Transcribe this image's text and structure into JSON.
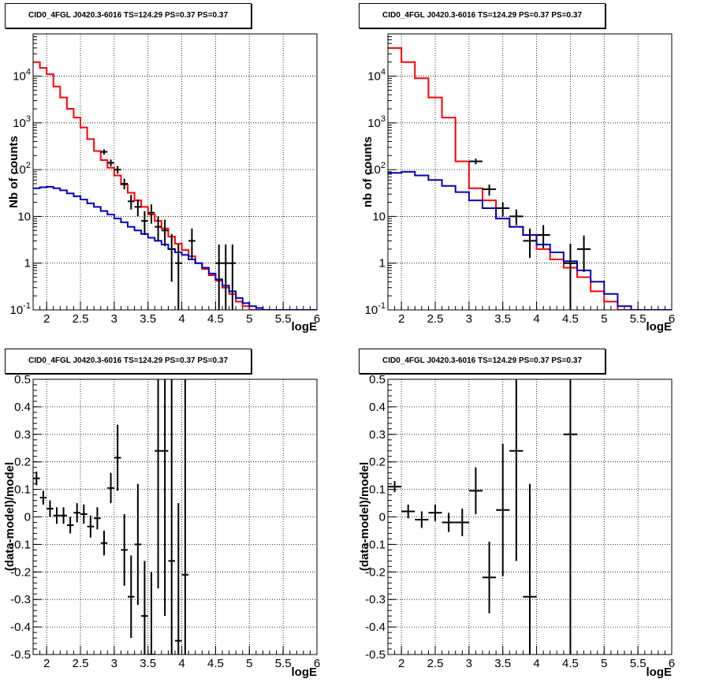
{
  "colors": {
    "model_total": "#ff0000",
    "model_background": "#0000cc",
    "data": "#000000"
  },
  "chart_data": [
    {
      "id": "top-left",
      "type": "line",
      "title": "CID0_4FGL J0420.3-6016 TS=124.29 PS=0.37 PS=0.37",
      "xlabel": "logE",
      "ylabel": "Nb of counts",
      "xlim": [
        1.8,
        6.0
      ],
      "ylim": [
        0.1,
        80000
      ],
      "yscale": "log",
      "grid": true,
      "x_ticks": [
        2,
        2.5,
        3,
        3.5,
        4,
        4.5,
        5,
        5.5,
        6
      ],
      "x_tick_labels": [
        "2",
        "2.5",
        "3",
        "3.5",
        "4",
        "4.5",
        "5",
        "5.5",
        "6"
      ],
      "y_ticks": [
        0.1,
        1,
        10,
        100,
        1000,
        10000
      ],
      "y_tick_labels": [
        "10^-1",
        "1",
        "10",
        "10^2",
        "10^3",
        "10^4"
      ],
      "series": [
        {
          "name": "",
          "role": "model_total",
          "style": "step",
          "bin_width": 0.1,
          "x": [
            1.8,
            1.9,
            2.0,
            2.1,
            2.2,
            2.3,
            2.4,
            2.5,
            2.6,
            2.7,
            2.8,
            2.9,
            3.0,
            3.1,
            3.2,
            3.3,
            3.4,
            3.5,
            3.6,
            3.7,
            3.8,
            3.9,
            4.0,
            4.1,
            4.2,
            4.3,
            4.4,
            4.5,
            4.6,
            4.7,
            4.8,
            4.9,
            5.0,
            5.1,
            5.2,
            5.3,
            5.4,
            5.5,
            5.6,
            5.7,
            5.8,
            5.9
          ],
          "y": [
            20000,
            15000,
            11000,
            6000,
            3500,
            2000,
            1300,
            800,
            450,
            250,
            160,
            110,
            75,
            48,
            32,
            22,
            16,
            11,
            8,
            5.5,
            3.7,
            2.6,
            1.9,
            1.4,
            1.0,
            0.75,
            0.55,
            0.42,
            0.3,
            0.22,
            0.15,
            0.12,
            0.1,
            0.1,
            0.1,
            0.1,
            0.1,
            0.1,
            0.1,
            0.1,
            0.1,
            0.1
          ]
        },
        {
          "name": "",
          "role": "model_background",
          "style": "step",
          "bin_width": 0.1,
          "x": [
            1.8,
            1.9,
            2.0,
            2.1,
            2.2,
            2.3,
            2.4,
            2.5,
            2.6,
            2.7,
            2.8,
            2.9,
            3.0,
            3.1,
            3.2,
            3.3,
            3.4,
            3.5,
            3.6,
            3.7,
            3.8,
            3.9,
            4.0,
            4.1,
            4.2,
            4.3,
            4.4,
            4.5,
            4.6,
            4.7,
            4.8,
            4.9,
            5.0,
            5.1,
            5.2,
            5.3,
            5.4,
            5.5,
            5.6,
            5.7,
            5.8,
            5.9
          ],
          "y": [
            40,
            42,
            43,
            40,
            36,
            31,
            27,
            23,
            19,
            16,
            13,
            11,
            9,
            7.5,
            6,
            5,
            4.2,
            3.5,
            3.0,
            2.5,
            2.0,
            1.7,
            1.5,
            1.2,
            1.0,
            0.8,
            0.6,
            0.45,
            0.33,
            0.25,
            0.18,
            0.14,
            0.12,
            0.11,
            0.1,
            0.1,
            0.1,
            0.1,
            0.1,
            0.1,
            0.1,
            0.1
          ]
        },
        {
          "name": "",
          "role": "data",
          "style": "errorbar",
          "xerr": 0.05,
          "x": [
            2.85,
            2.95,
            3.05,
            3.15,
            3.25,
            3.35,
            3.45,
            3.55,
            3.65,
            3.75,
            3.85,
            3.95,
            4.15,
            4.55,
            4.65,
            4.75
          ],
          "y": [
            240,
            140,
            100,
            50,
            21,
            16,
            8,
            12,
            6,
            5,
            2,
            1,
            3,
            1,
            1,
            1
          ],
          "ylo": [
            210,
            118,
            82,
            38,
            14,
            10,
            4,
            7,
            3,
            2.3,
            0.4,
            0.1,
            1.2,
            0.1,
            0.1,
            0.1
          ],
          "yhi": [
            272,
            165,
            120,
            64,
            29,
            23,
            13,
            18,
            10,
            8.5,
            4.2,
            2.5,
            5.5,
            2.5,
            2.5,
            2.5
          ]
        }
      ]
    },
    {
      "id": "top-right",
      "type": "line",
      "title": "CID0_4FGL J0420.3-6016 TS=124.29 PS=0.37 PS=0.37",
      "xlabel": "logE",
      "ylabel": "nb of counts",
      "xlim": [
        1.8,
        6.0
      ],
      "ylim": [
        0.1,
        80000
      ],
      "yscale": "log",
      "grid": true,
      "x_ticks": [
        2,
        2.5,
        3,
        3.5,
        4,
        4.5,
        5,
        5.5,
        6
      ],
      "x_tick_labels": [
        "2",
        "2.5",
        "3",
        "3.5",
        "4",
        "4.5",
        "5",
        "5.5",
        "6"
      ],
      "y_ticks": [
        0.1,
        1,
        10,
        100,
        1000,
        10000
      ],
      "y_tick_labels": [
        "10^-1",
        "1",
        "10",
        "10^2",
        "10^3",
        "10^4"
      ],
      "series": [
        {
          "name": "",
          "role": "model_total",
          "style": "step",
          "bin_width": 0.2,
          "x": [
            1.8,
            2.0,
            2.2,
            2.4,
            2.6,
            2.8,
            3.0,
            3.2,
            3.4,
            3.6,
            3.8,
            4.0,
            4.2,
            4.4,
            4.6,
            4.8,
            5.0,
            5.2,
            5.4,
            5.6,
            5.8
          ],
          "y": [
            40000,
            20000,
            9000,
            3500,
            1300,
            150,
            40,
            22,
            9,
            6,
            4,
            2,
            1.2,
            0.8,
            0.5,
            0.25,
            0.15,
            0.1,
            0.1,
            0.1,
            0.1
          ]
        },
        {
          "name": "",
          "role": "model_background",
          "style": "step",
          "bin_width": 0.2,
          "x": [
            1.8,
            2.0,
            2.2,
            2.4,
            2.6,
            2.8,
            3.0,
            3.2,
            3.4,
            3.6,
            3.8,
            4.0,
            4.2,
            4.4,
            4.6,
            4.8,
            5.0,
            5.2,
            5.4,
            5.6,
            5.8
          ],
          "y": [
            85,
            90,
            75,
            60,
            45,
            33,
            22,
            15,
            9,
            6,
            4,
            2.5,
            1.7,
            1.1,
            0.7,
            0.4,
            0.22,
            0.12,
            0.1,
            0.1,
            0.1
          ]
        },
        {
          "name": "",
          "role": "data",
          "style": "errorbar",
          "xerr": 0.1,
          "x": [
            3.1,
            3.3,
            3.5,
            3.7,
            3.9,
            4.1,
            4.5,
            4.7
          ],
          "y": [
            150,
            38,
            15,
            10,
            3,
            4,
            1,
            2
          ],
          "ylo": [
            130,
            28,
            10,
            6.5,
            1.3,
            2.1,
            0.1,
            0.65
          ],
          "yhi": [
            172,
            48,
            20,
            14,
            5.5,
            6.5,
            2.6,
            3.9
          ]
        }
      ]
    },
    {
      "id": "bottom-left",
      "type": "scatter",
      "title": "CID0_4FGL J0420.3-6016 TS=124.29 PS=0.37 PS=0.37",
      "xlabel": "logE",
      "ylabel": "(data-model)/model",
      "xlim": [
        1.8,
        6.0
      ],
      "ylim": [
        -0.5,
        0.5
      ],
      "yscale": "linear",
      "grid": true,
      "x_ticks": [
        2,
        2.5,
        3,
        3.5,
        4,
        4.5,
        5,
        5.5,
        6
      ],
      "x_tick_labels": [
        "2",
        "2.5",
        "3",
        "3.5",
        "4",
        "4.5",
        "5",
        "5.5",
        "6"
      ],
      "y_ticks": [
        -0.5,
        -0.4,
        -0.3,
        -0.2,
        -0.1,
        0,
        0.1,
        0.2,
        0.3,
        0.4,
        0.5
      ],
      "y_tick_labels": [
        "-0.5",
        "-0.4",
        "-0.3",
        "-0.2",
        "-0.1",
        "0",
        "0.1",
        "0.2",
        "0.3",
        "0.4",
        "0.5"
      ],
      "series": [
        {
          "name": "",
          "role": "data",
          "style": "errorbar",
          "xerr": 0.05,
          "x": [
            1.85,
            1.95,
            2.05,
            2.15,
            2.25,
            2.35,
            2.45,
            2.55,
            2.65,
            2.75,
            2.85,
            2.95,
            3.05,
            3.15,
            3.25,
            3.35,
            3.45,
            3.55,
            3.65,
            3.75,
            3.85,
            3.95,
            4.05
          ],
          "y": [
            0.14,
            0.07,
            0.03,
            0.005,
            0.005,
            -0.03,
            0.015,
            0.01,
            -0.035,
            -0.005,
            -0.095,
            0.105,
            0.215,
            -0.12,
            -0.29,
            -0.1,
            -0.36,
            -0.5,
            0.24,
            0.24,
            -0.16,
            -0.45,
            -0.21
          ],
          "yerr": [
            0.025,
            0.025,
            0.03,
            0.03,
            0.03,
            0.03,
            0.035,
            0.035,
            0.04,
            0.04,
            0.045,
            0.055,
            0.12,
            0.13,
            0.15,
            0.22,
            0.2,
            0.3,
            0.5,
            0.6,
            0.7,
            0.5,
            0.75
          ]
        }
      ]
    },
    {
      "id": "bottom-right",
      "type": "scatter",
      "title": "CID0_4FGL J0420.3-6016 TS=124.29 PS=0.37 PS=0.37",
      "xlabel": "logE",
      "ylabel": "(data-model)/model",
      "xlim": [
        1.8,
        6.0
      ],
      "ylim": [
        -0.5,
        0.5
      ],
      "yscale": "linear",
      "grid": true,
      "x_ticks": [
        2,
        2.5,
        3,
        3.5,
        4,
        4.5,
        5,
        5.5,
        6
      ],
      "x_tick_labels": [
        "2",
        "2.5",
        "3",
        "3.5",
        "4",
        "4.5",
        "5",
        "5.5",
        "6"
      ],
      "y_ticks": [
        -0.5,
        -0.4,
        -0.3,
        -0.2,
        -0.1,
        0,
        0.1,
        0.2,
        0.3,
        0.4,
        0.5
      ],
      "y_tick_labels": [
        "-0.5",
        "-0.4",
        "-0.3",
        "-0.2",
        "-0.1",
        "0",
        "0.1",
        "0.2",
        "0.3",
        "0.4",
        "0.5"
      ],
      "series": [
        {
          "name": "",
          "role": "data",
          "style": "errorbar",
          "xerr": 0.1,
          "x": [
            1.9,
            2.1,
            2.3,
            2.5,
            2.7,
            2.9,
            3.1,
            3.3,
            3.5,
            3.7,
            3.9,
            4.5
          ],
          "y": [
            0.11,
            0.02,
            -0.01,
            0.015,
            -0.02,
            -0.02,
            0.095,
            -0.22,
            0.025,
            0.24,
            -0.29,
            0.3
          ],
          "yerr": [
            0.02,
            0.025,
            0.03,
            0.03,
            0.035,
            0.05,
            0.085,
            0.13,
            0.24,
            0.4,
            0.41,
            0.8
          ]
        }
      ]
    }
  ]
}
